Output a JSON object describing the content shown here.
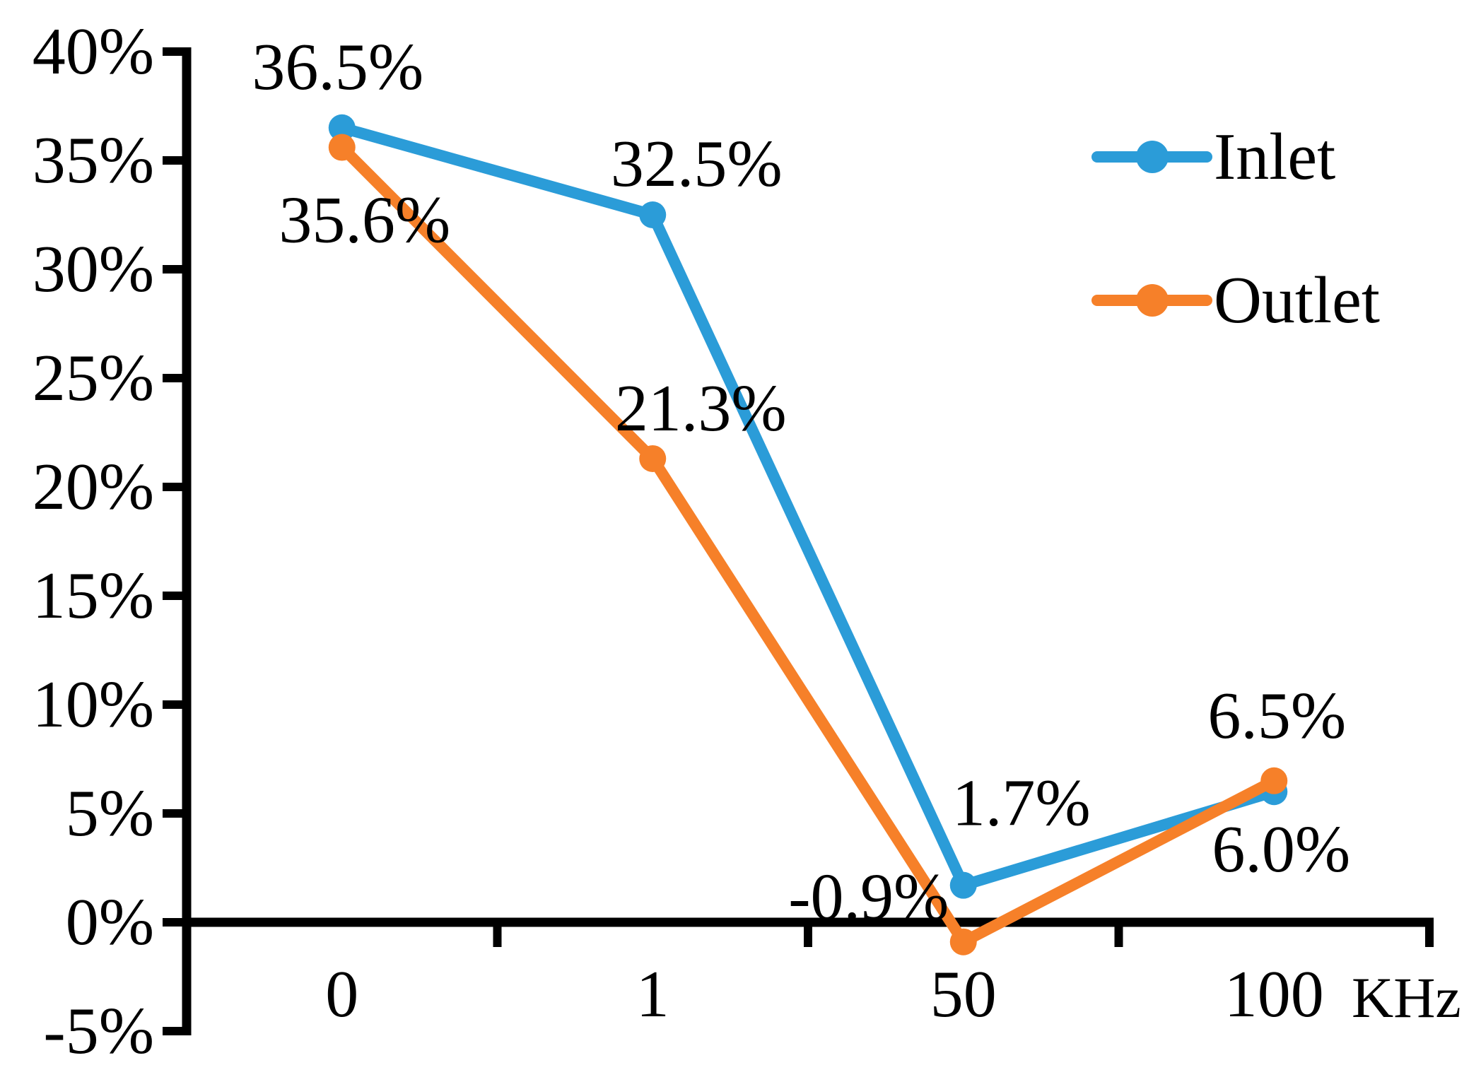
{
  "chart_data": {
    "type": "line",
    "categories": [
      "0",
      "1",
      "50",
      "100"
    ],
    "x_unit": "KHz",
    "series": [
      {
        "name": "Inlet",
        "color": "#2B9CD8",
        "values": [
          36.5,
          32.5,
          1.7,
          6.0
        ],
        "labels": [
          "36.5%",
          "32.5%",
          "1.7%",
          "6.0%"
        ]
      },
      {
        "name": "Outlet",
        "color": "#F68029",
        "values": [
          35.6,
          21.3,
          -0.9,
          6.5
        ],
        "labels": [
          "35.6%",
          "21.3%",
          "-0.9%",
          "6.5%"
        ]
      }
    ],
    "ylim": [
      -5,
      40
    ],
    "ytick_step": 5,
    "yticks": [
      {
        "value": 40,
        "label": "40%"
      },
      {
        "value": 35,
        "label": "35%"
      },
      {
        "value": 30,
        "label": "30%"
      },
      {
        "value": 25,
        "label": "25%"
      },
      {
        "value": 20,
        "label": "20%"
      },
      {
        "value": 15,
        "label": "15%"
      },
      {
        "value": 10,
        "label": "10%"
      },
      {
        "value": 5,
        "label": "5%"
      },
      {
        "value": 0,
        "label": "0%"
      },
      {
        "value": -5,
        "label": "-5%"
      }
    ],
    "grid": false,
    "legend_position": "right-top",
    "axis_color": "#000000",
    "text_color": "#000000",
    "background": "#FFFFFF"
  }
}
